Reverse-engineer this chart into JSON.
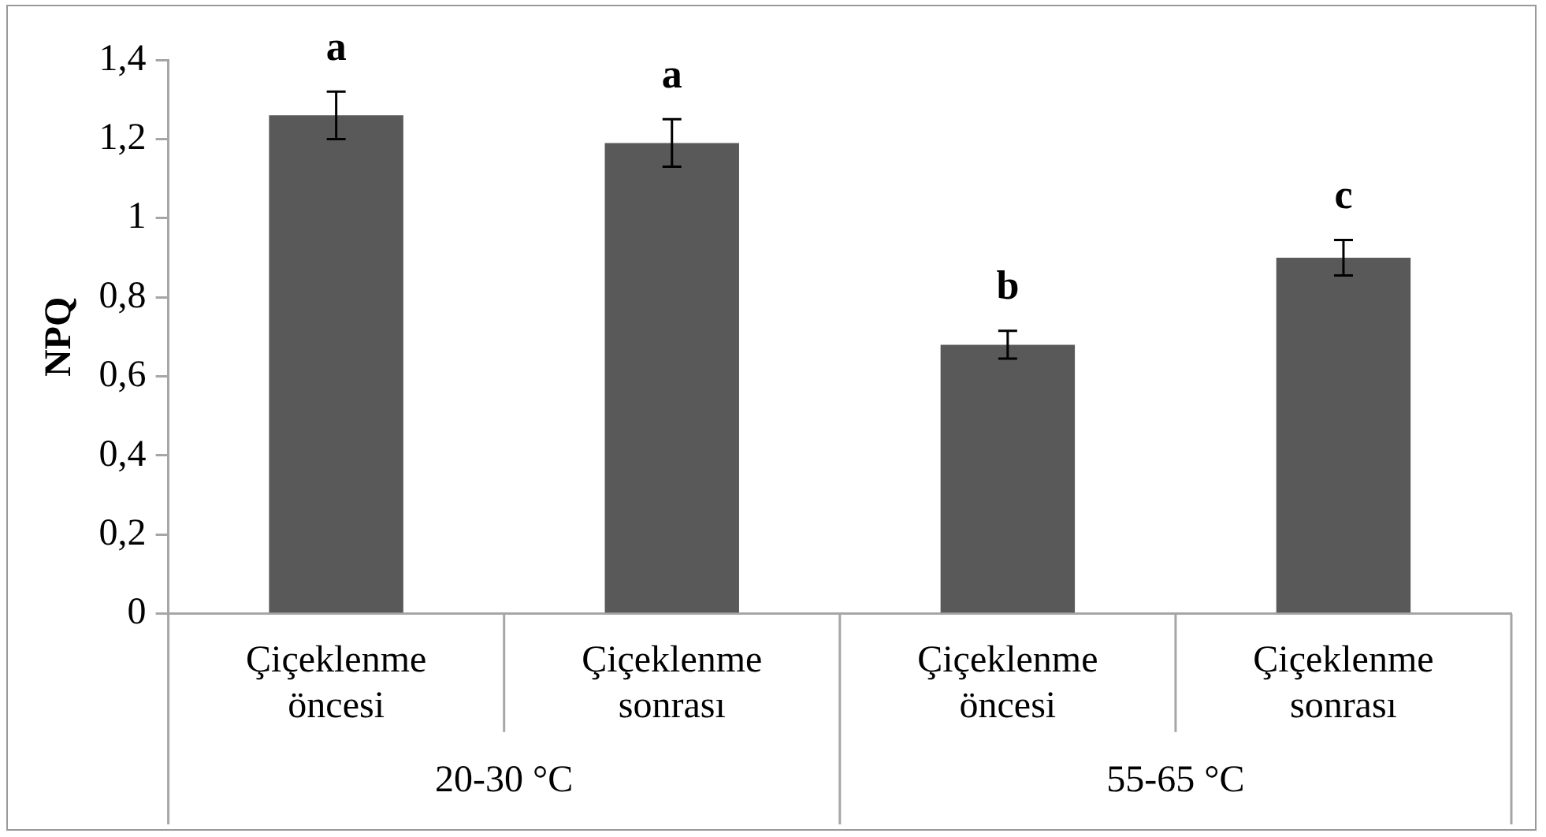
{
  "chart_data": {
    "type": "bar",
    "ylabel": "NPQ",
    "categories": [
      "Çiçeklenme öncesi",
      "Çiçeklenme sonrası",
      "Çiçeklenme öncesi",
      "Çiçeklenme sonrası"
    ],
    "values": [
      1.26,
      1.19,
      0.68,
      0.9
    ],
    "errors": [
      0.06,
      0.06,
      0.035,
      0.045
    ],
    "value_labels": [
      "a",
      "a",
      "b",
      "c"
    ],
    "color": "#595959",
    "ylim": [
      0,
      1.4
    ],
    "yticks": [
      {
        "value": 0,
        "label": "0"
      },
      {
        "value": 0.2,
        "label": "0,2"
      },
      {
        "value": 0.4,
        "label": "0,4"
      },
      {
        "value": 0.6,
        "label": "0,6"
      },
      {
        "value": 0.8,
        "label": "0,8"
      },
      {
        "value": 1,
        "label": "1"
      },
      {
        "value": 1.2,
        "label": "1,2"
      },
      {
        "value": 1.4,
        "label": "1,4"
      }
    ],
    "grid": false,
    "annotations": [
      "20-30 °C",
      "55-65 °C"
    ]
  }
}
